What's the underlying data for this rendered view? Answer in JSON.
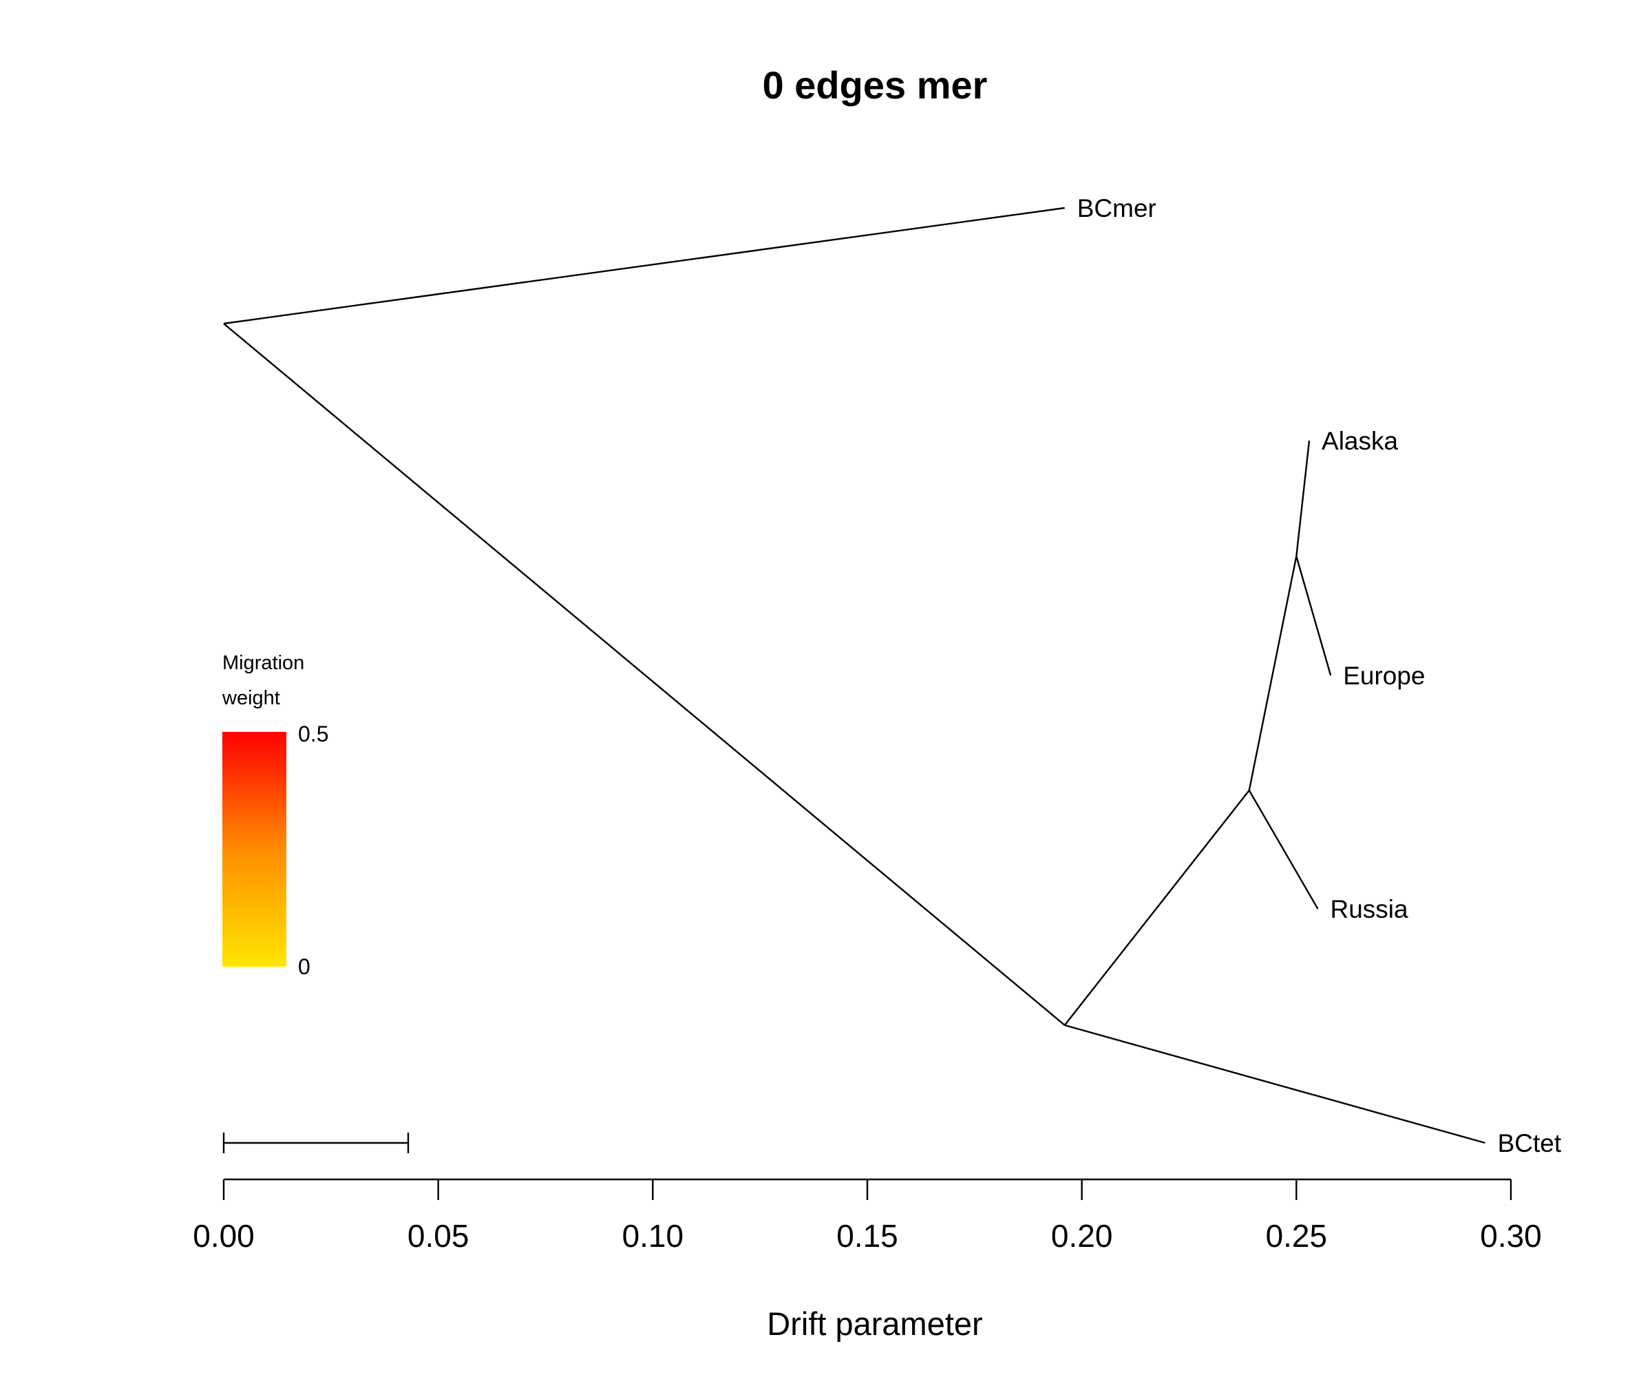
{
  "chart_data": {
    "type": "tree",
    "title": "0 edges mer",
    "xlabel": "Drift parameter",
    "xlim": [
      0,
      0.3
    ],
    "x_ticks": [
      0.0,
      0.05,
      0.1,
      0.15,
      0.2,
      0.25,
      0.3
    ],
    "x_tick_labels": [
      "0.00",
      "0.05",
      "0.10",
      "0.15",
      "0.20",
      "0.25",
      "0.30"
    ],
    "scale_bar_length": 0.043,
    "grid": false,
    "tips": [
      "BCmer",
      "Alaska",
      "Europe",
      "Russia",
      "BCtet"
    ],
    "branches": [
      {
        "from": "root",
        "to": "BCmer",
        "x0": 0.0,
        "x1": 0.196
      },
      {
        "from": "root",
        "to": "node_a",
        "x0": 0.0,
        "x1": 0.196
      },
      {
        "from": "node_a",
        "to": "BCtet",
        "x0": 0.196,
        "x1": 0.294
      },
      {
        "from": "node_a",
        "to": "node_b",
        "x0": 0.196,
        "x1": 0.239
      },
      {
        "from": "node_b",
        "to": "Russia",
        "x0": 0.239,
        "x1": 0.255
      },
      {
        "from": "node_b",
        "to": "node_c",
        "x0": 0.239,
        "x1": 0.25
      },
      {
        "from": "node_c",
        "to": "Europe",
        "x0": 0.25,
        "x1": 0.258
      },
      {
        "from": "node_c",
        "to": "Alaska",
        "x0": 0.25,
        "x1": 0.253
      }
    ],
    "legend": {
      "title": [
        "Migration",
        "weight"
      ],
      "max_label": "0.5",
      "min_label": "0",
      "color_low": "#FFE600",
      "color_mid": "#FF8C00",
      "color_high": "#FF0000",
      "placement": "left"
    }
  }
}
